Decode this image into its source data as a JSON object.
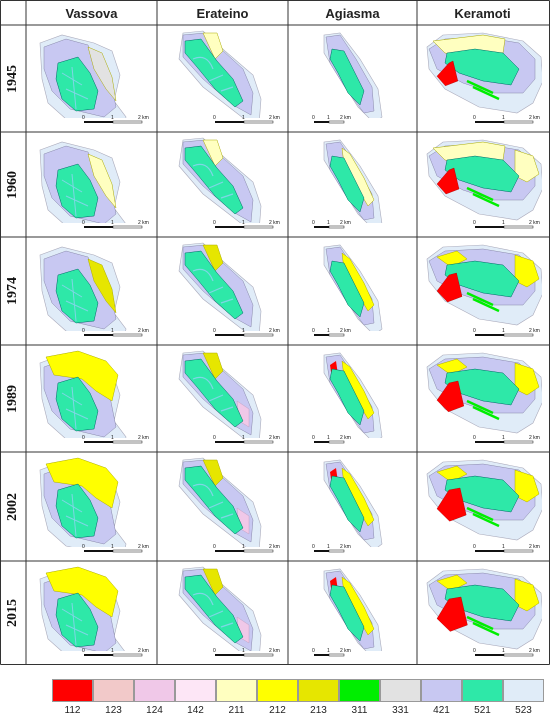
{
  "columns": [
    "Vassova",
    "Erateino",
    "Agiasma",
    "Keramoti"
  ],
  "years": [
    "1945",
    "1960",
    "1974",
    "1989",
    "2002",
    "2015"
  ],
  "scalebar": {
    "ticks": [
      "0",
      "1",
      "2 km"
    ]
  },
  "legend": [
    {
      "code": "112",
      "color": "#ff0000"
    },
    {
      "code": "123",
      "color": "#f2c9c9"
    },
    {
      "code": "124",
      "color": "#f0c8e8"
    },
    {
      "code": "142",
      "color": "#fde6f6"
    },
    {
      "code": "211",
      "color": "#ffffc0"
    },
    {
      "code": "212",
      "color": "#ffff00"
    },
    {
      "code": "213",
      "color": "#e6e600"
    },
    {
      "code": "311",
      "color": "#00ee00"
    },
    {
      "code": "331",
      "color": "#e2e2e2"
    },
    {
      "code": "421",
      "color": "#c8c8f2"
    },
    {
      "code": "521",
      "color": "#2ee8a8"
    },
    {
      "code": "523",
      "color": "#e0ecf8"
    }
  ],
  "map_colors": {
    "sea": "#e0ecf8",
    "marsh": "#c8c8f2",
    "lagoon": "#2ee8a8",
    "channel": "#7fd6e6",
    "agri": "#ffffc0",
    "agri_yellow": "#ffff00",
    "agri_olive": "#e6e600",
    "urban": "#ff0000",
    "bare": "#e2e2e2",
    "greenhouse": "#f0c8e8",
    "forest": "#00ee00"
  }
}
